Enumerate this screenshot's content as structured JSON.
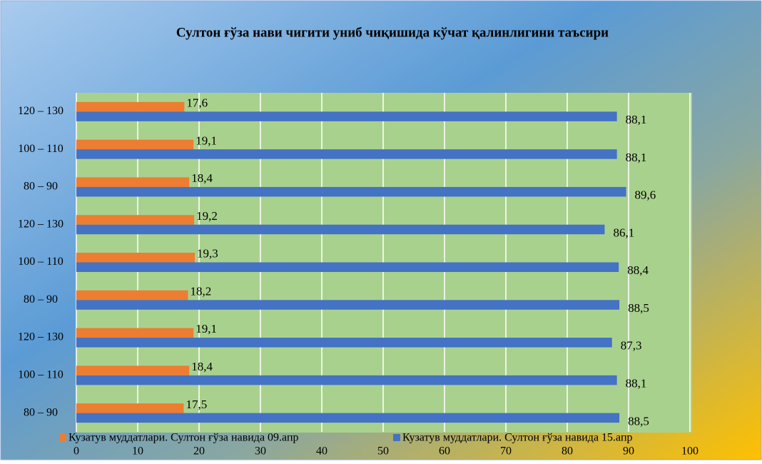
{
  "chart_data": {
    "type": "barh",
    "title": "Султон ғўза нави чигити униб чиқишида кўчат қалинлигини таъсири",
    "categories": [
      "120 – 130",
      "100 – 110",
      "80 – 90",
      "120 – 130",
      "100 – 110",
      "80 – 90",
      "120 – 130",
      "100 – 110",
      "80 – 90"
    ],
    "series": [
      {
        "name": "Кузатув муддатлари. Султон ғўза навида 09.апр",
        "color": "#ed7d31",
        "values": [
          17.6,
          19.1,
          18.4,
          19.2,
          19.3,
          18.2,
          19.1,
          18.4,
          17.5
        ],
        "value_labels": [
          "17,6",
          "19,1",
          "18,4",
          "19,2",
          "19,3",
          "18,2",
          "19,1",
          "18,4",
          "17,5"
        ]
      },
      {
        "name": "Кузатув муддатлари. Султон ғўза навида 15.апр",
        "color": "#4472c4",
        "values": [
          88.1,
          88.1,
          89.6,
          86.1,
          88.4,
          88.5,
          87.3,
          88.1,
          88.5
        ],
        "value_labels": [
          "88,1",
          "88,1",
          "89,6",
          "86,1",
          "88,4",
          "88,5",
          "87,3",
          "88,1",
          "88,5"
        ]
      }
    ],
    "xlim": [
      0,
      100
    ],
    "xticks": [
      0,
      10,
      20,
      30,
      40,
      50,
      60,
      70,
      80,
      90,
      100
    ],
    "grid": true,
    "legend": "bottom"
  }
}
